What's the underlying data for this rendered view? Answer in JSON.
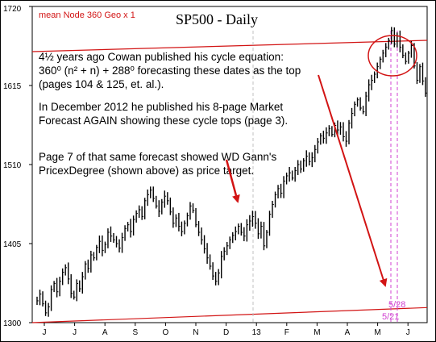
{
  "chart_data": {
    "type": "bar",
    "subtype": "ohlc",
    "title": "SP500 - Daily",
    "indicator_label": "mean Node 360 Geo x 1",
    "ylim": [
      1300,
      1720
    ],
    "y_ticks": [
      1300,
      1405,
      1510,
      1615,
      1720
    ],
    "x_ticks": [
      "J",
      "J",
      "A",
      "S",
      "O",
      "N",
      "D",
      "13",
      "F",
      "M",
      "A",
      "M",
      "J"
    ],
    "grid": false,
    "series": [
      {
        "values": [
          1329,
          1338,
          1325,
          1313,
          1321,
          1344,
          1352,
          1341,
          1355,
          1367,
          1373,
          1358,
          1339,
          1334,
          1352,
          1345,
          1361,
          1378,
          1372,
          1390,
          1386,
          1400,
          1408,
          1396,
          1404,
          1420,
          1415,
          1410,
          1405,
          1399,
          1413,
          1425,
          1430,
          1421,
          1437,
          1445,
          1450,
          1441,
          1462,
          1470,
          1476,
          1465,
          1455,
          1448,
          1460,
          1468,
          1462,
          1447,
          1432,
          1439,
          1428,
          1421,
          1432,
          1442,
          1455,
          1449,
          1430,
          1420,
          1410,
          1398,
          1386,
          1375,
          1362,
          1355,
          1366,
          1388,
          1395,
          1402,
          1410,
          1416,
          1421,
          1428,
          1420,
          1415,
          1430,
          1435,
          1441,
          1432,
          1418,
          1428,
          1402,
          1420,
          1444,
          1457,
          1470,
          1478,
          1472,
          1488,
          1495,
          1499,
          1492,
          1502,
          1510,
          1504,
          1515,
          1521,
          1514,
          1519,
          1530,
          1540,
          1548,
          1545,
          1552,
          1558,
          1550,
          1562,
          1556,
          1560,
          1547,
          1541,
          1565,
          1578,
          1590,
          1596,
          1585,
          1580,
          1601,
          1616,
          1622,
          1630,
          1640,
          1650,
          1658,
          1666,
          1675,
          1688,
          1670,
          1681,
          1666,
          1655,
          1647,
          1658,
          1668,
          1641,
          1622,
          1640,
          1621,
          1605
        ]
      }
    ],
    "overlay_lines": [
      {
        "name": "upper red line",
        "points": [
          [
            0,
            1660
          ],
          [
            1,
            1675
          ]
        ]
      },
      {
        "name": "lower red line",
        "points": [
          [
            0,
            1300
          ],
          [
            1,
            1320
          ]
        ]
      }
    ],
    "vlines": [
      {
        "label": "",
        "color": "#c0c0c0"
      },
      {
        "label": "5/21",
        "color": "#d040d0"
      },
      {
        "label": "5/28",
        "color": "#d040d0"
      }
    ]
  },
  "annotations": {
    "para1_l1": "4½ years ago Cowan published his cycle equation:",
    "para1_l2": "360⁰ (n² + n) + 288⁰ forecasting these dates as the top",
    "para1_l3": "(pages 104 & 125, et. al.).",
    "para2_l1": "In December 2012 he published his 8-page Market",
    "para2_l2": "Forecast AGAIN showing these cycle tops (page 3).",
    "para3_l1": "Page 7 of that same forecast showed WD Gann's",
    "para3_l2": "PricexDegree (shown above) as price target."
  },
  "colors": {
    "price": "#000000",
    "red": "#d21414",
    "magenta": "#d040d0",
    "grey": "#b8b8b8",
    "frame": "#000000"
  }
}
